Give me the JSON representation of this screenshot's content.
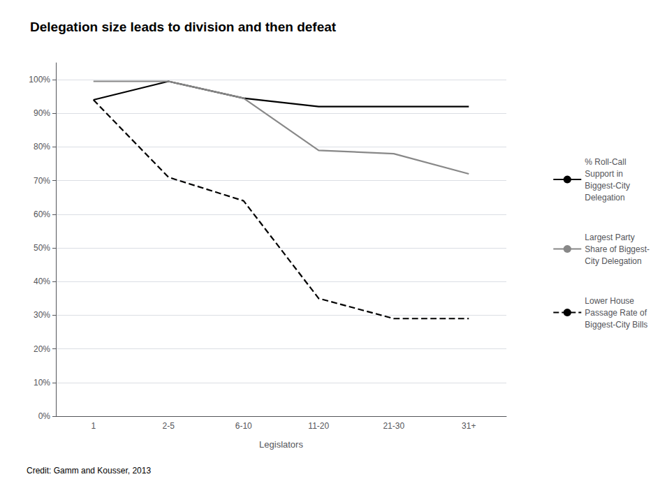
{
  "chart_data": {
    "type": "line",
    "title": "Delegation size leads to division and then defeat",
    "x_label": "Legislators",
    "categories": [
      "1",
      "2-5",
      "6-10",
      "11-20",
      "21-30",
      "31+"
    ],
    "series": [
      {
        "name": "% Roll-Call\nSupport in\nBiggest-City\nDelegation",
        "color": "#000000",
        "line_style": "solid",
        "values": [
          0.94,
          0.995,
          0.945,
          0.92,
          0.92,
          0.92
        ]
      },
      {
        "name": "Largest Party\nShare of Biggest-\nCity Delegation",
        "color": "#888888",
        "line_style": "solid",
        "values": [
          0.995,
          0.995,
          0.945,
          0.79,
          0.78,
          0.72
        ]
      },
      {
        "name": "Lower House\nPassage Rate of\nBiggest-City Bills",
        "color": "#000000",
        "line_style": "dashed",
        "values": [
          0.94,
          0.71,
          0.64,
          0.35,
          0.29,
          0.29
        ]
      }
    ],
    "ylim": [
      0,
      1.05
    ],
    "yticks": [
      {
        "value": 0,
        "label": "0%"
      },
      {
        "value": 0.1,
        "label": "10%"
      },
      {
        "value": 0.2,
        "label": "20%"
      },
      {
        "value": 0.3,
        "label": "30%"
      },
      {
        "value": 0.4,
        "label": "40%"
      },
      {
        "value": 0.5,
        "label": "50%"
      },
      {
        "value": 0.6,
        "label": "60%"
      },
      {
        "value": 0.7,
        "label": "70%"
      },
      {
        "value": 0.8,
        "label": "80%"
      },
      {
        "value": 0.9,
        "label": "90%"
      },
      {
        "value": 1,
        "label": "100%"
      }
    ],
    "grid": true,
    "legend": "right",
    "annotations": [
      "Credit: Gamm and Kousser, 2013"
    ]
  }
}
